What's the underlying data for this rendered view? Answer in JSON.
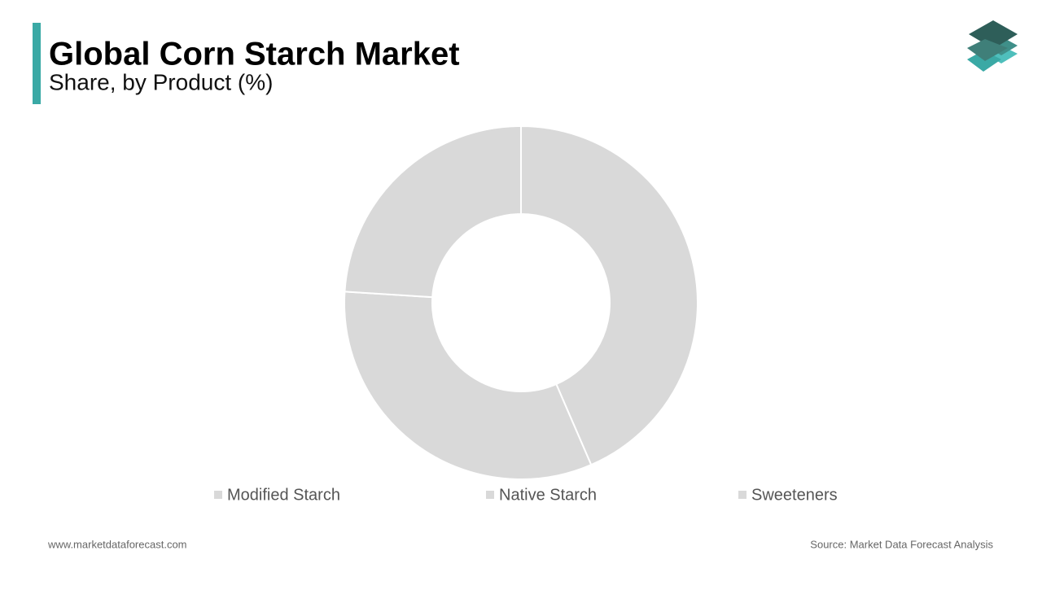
{
  "chart_data": {
    "type": "donut",
    "title": "Global Corn Starch Market",
    "subtitle": "Share, by Product (%)",
    "categories": [
      "Modified Starch",
      "Native Starch",
      "Sweeteners"
    ],
    "values": [
      43.5,
      32.5,
      24
    ],
    "colors": [
      "#d9d9d9",
      "#d9d9d9",
      "#d9d9d9"
    ]
  },
  "footer": {
    "website": "www.marketdataforecast.com",
    "source": "Source: Market Data Forecast Analysis"
  }
}
